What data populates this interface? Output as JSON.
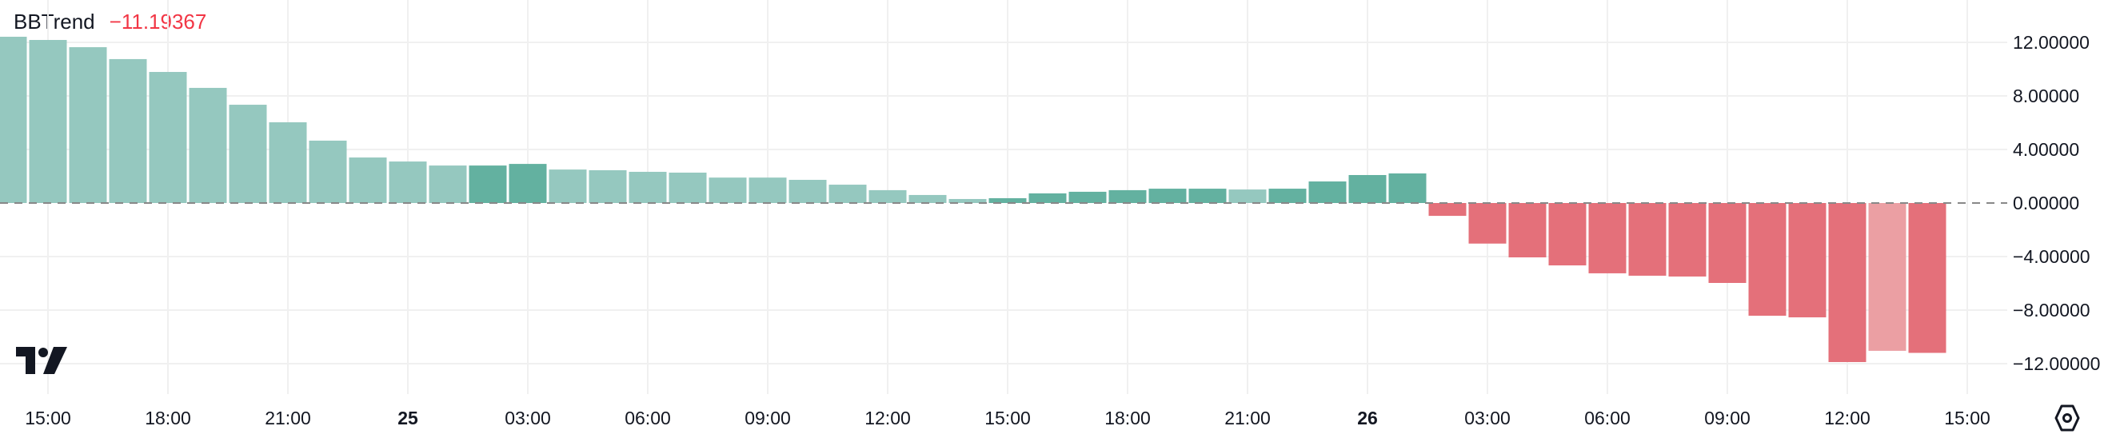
{
  "legend": {
    "name": "BBTrend",
    "value": "−11.19367"
  },
  "colors": {
    "up_strong": "#63b1a0",
    "up_weak": "#95c8bf",
    "down_strong": "#e4707a",
    "down_weak": "#eb9fa3",
    "zero_line": "#888888",
    "grid": "#f0f0f0",
    "text": "#131722"
  },
  "icons": {
    "logo": "tradingview-logo",
    "settings": "settings-hexagon-icon"
  },
  "chart_data": {
    "type": "bar",
    "title": "BBTrend",
    "interval": "1h",
    "ylim": [
      -14.5,
      15
    ],
    "grid": true,
    "zero_line": "dashed",
    "y_ticks": [
      12,
      8,
      4,
      0,
      -4,
      -8,
      -12
    ],
    "y_tick_labels": [
      "12.00000",
      "8.00000",
      "4.00000",
      "0.00000",
      "−4.00000",
      "−8.00000",
      "−12.00000"
    ],
    "x_tick_labels": [
      "15:00",
      "18:00",
      "21:00",
      "25",
      "03:00",
      "06:00",
      "09:00",
      "12:00",
      "15:00",
      "18:00",
      "21:00",
      "26",
      "03:00",
      "06:00",
      "09:00",
      "12:00",
      "15:00"
    ],
    "x_tick_bold": [
      false,
      false,
      false,
      true,
      false,
      false,
      false,
      false,
      false,
      false,
      false,
      true,
      false,
      false,
      false,
      false,
      false
    ],
    "first_bar_time": "24 14:00",
    "values": [
      12.42,
      12.18,
      11.64,
      10.75,
      9.79,
      8.6,
      7.34,
      6.03,
      4.66,
      3.4,
      3.1,
      2.8,
      2.8,
      2.92,
      2.5,
      2.45,
      2.33,
      2.27,
      1.9,
      1.9,
      1.73,
      1.37,
      0.96,
      0.6,
      0.3,
      0.36,
      0.72,
      0.84,
      0.96,
      1.07,
      1.07,
      1.01,
      1.07,
      1.61,
      2.09,
      2.21,
      -0.96,
      -3.03,
      -4.06,
      -4.66,
      -5.25,
      -5.43,
      -5.49,
      -5.97,
      -8.42,
      -8.54,
      -11.88,
      -11.04,
      -11.19367
    ],
    "bar_shade": [
      "weak",
      "weak",
      "weak",
      "weak",
      "weak",
      "weak",
      "weak",
      "weak",
      "weak",
      "weak",
      "weak",
      "weak",
      "strong",
      "strong",
      "weak",
      "weak",
      "weak",
      "weak",
      "weak",
      "weak",
      "weak",
      "weak",
      "weak",
      "weak",
      "weak",
      "strong",
      "strong",
      "strong",
      "strong",
      "strong",
      "strong",
      "weak",
      "strong",
      "strong",
      "strong",
      "strong",
      "strong",
      "strong",
      "strong",
      "strong",
      "strong",
      "strong",
      "strong",
      "strong",
      "strong",
      "strong",
      "strong",
      "weak",
      "strong"
    ]
  }
}
